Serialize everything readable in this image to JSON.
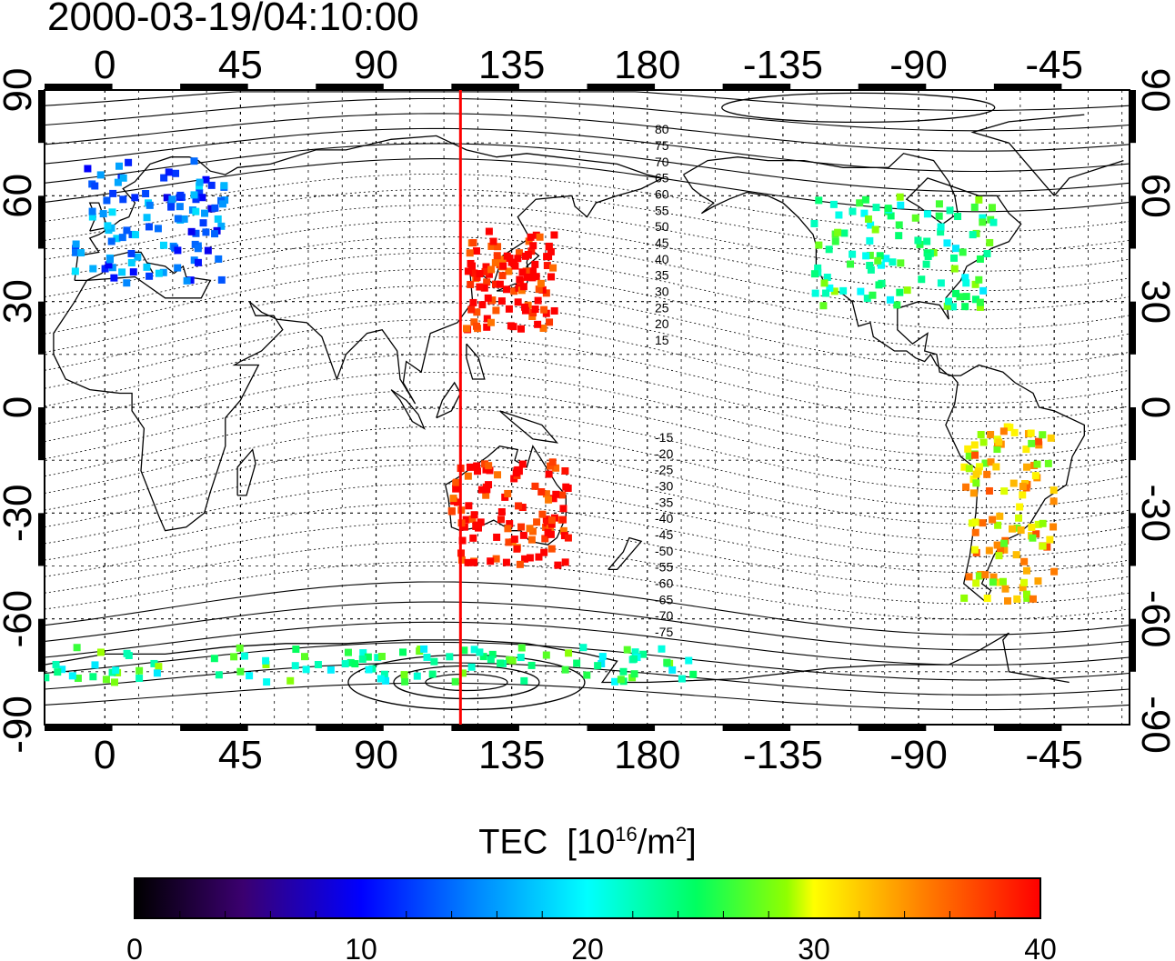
{
  "title": "2000-03-19/04:10:00",
  "map": {
    "top_lon_ticks": [
      "0",
      "45",
      "90",
      "135",
      "180",
      "-135",
      "-90",
      "-45"
    ],
    "bottom_lon_ticks": [
      "0",
      "45",
      "90",
      "135",
      "180",
      "-135",
      "-90",
      "-45"
    ],
    "left_lat_ticks": [
      "90",
      "60",
      "30",
      "0",
      "-30",
      "-60",
      "-90"
    ],
    "right_lat_ticks": [
      "90",
      "60",
      "30",
      "0",
      "-30",
      "-60",
      "-90"
    ],
    "grid": true,
    "contour_labels": [
      "80",
      "75",
      "70",
      "65",
      "60",
      "55",
      "50",
      "45",
      "40",
      "35",
      "30",
      "25",
      "20",
      "15",
      "-15",
      "-20",
      "-25",
      "-30",
      "-35",
      "-40",
      "-45",
      "-50",
      "-55",
      "-60",
      "-65",
      "-70",
      "-75"
    ],
    "colors": {
      "terminator_line": "#ff0000",
      "coastline": "#000000"
    }
  },
  "colorbar": {
    "label": "TEC",
    "unit_base": "[10",
    "unit_exp": "16",
    "unit_mid": "/m",
    "unit_exp2": "2",
    "unit_end": "]",
    "ticks": [
      "0",
      "10",
      "20",
      "30",
      "40"
    ],
    "range": [
      0,
      40
    ]
  },
  "chart_data": {
    "type": "heatmap",
    "title": "2000-03-19/04:10:00",
    "x_range": [
      -20,
      340
    ],
    "y_range": [
      -90,
      90
    ],
    "colorbar_range": [
      0,
      40
    ],
    "terminator_longitude": 118,
    "clusters": [
      {
        "region": "Europe",
        "lon": [
          -10,
          40
        ],
        "lat": [
          35,
          70
        ],
        "tec": 14
      },
      {
        "region": "North America",
        "lon": [
          -125,
          -65
        ],
        "lat": [
          28,
          60
        ],
        "tec": 24
      },
      {
        "region": "East Asia",
        "lon": [
          120,
          150
        ],
        "lat": [
          22,
          50
        ],
        "tec": 40
      },
      {
        "region": "Australia",
        "lon": [
          115,
          155
        ],
        "lat": [
          -45,
          -15
        ],
        "tec": 40
      },
      {
        "region": "South America",
        "lon": [
          -75,
          -45
        ],
        "lat": [
          -55,
          -5
        ],
        "tec": 32
      },
      {
        "region": "Antarctica coast",
        "lon": [
          -20,
          200
        ],
        "lat": [
          -78,
          -68
        ],
        "tec": 24
      }
    ]
  }
}
